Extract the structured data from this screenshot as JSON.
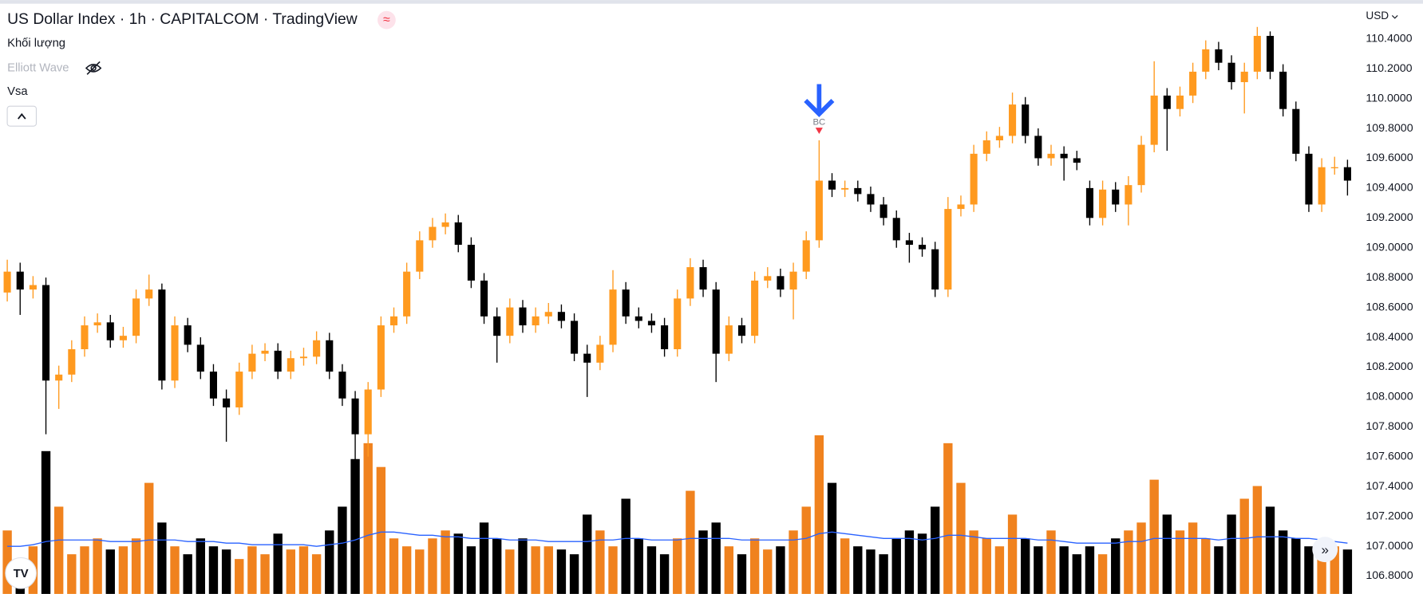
{
  "chart_data": {
    "type": "candlestick",
    "title": "US Dollar Index · 1h · CAPITALCOM · TradingView",
    "indicators": [
      "Khối lượng",
      "Elliott Wave",
      "Vsa"
    ],
    "currency": "USD",
    "up_color": "#ff9a1f",
    "down_color": "#000000",
    "open": [
      108.7,
      108.84,
      108.72,
      108.75,
      108.11,
      108.15,
      108.32,
      108.48,
      108.5,
      108.38,
      108.41,
      108.66,
      108.72,
      108.11,
      108.48,
      108.35,
      108.17,
      107.99,
      107.93,
      108.17,
      108.29,
      108.31,
      108.17,
      108.26,
      108.27,
      108.38,
      108.17,
      107.99,
      107.75,
      108.05,
      108.48,
      108.54,
      108.84,
      109.05,
      109.14,
      109.17,
      109.02,
      108.78,
      108.54,
      108.41,
      108.6,
      108.48,
      108.54,
      108.57,
      108.51,
      108.29,
      108.23,
      108.35,
      108.72,
      108.54,
      108.51,
      108.48,
      108.32,
      108.66,
      108.87,
      108.72,
      108.29,
      108.48,
      108.41,
      108.78,
      108.81,
      108.72,
      108.84,
      109.05,
      109.45,
      109.39,
      109.4,
      109.36,
      109.29,
      109.2,
      109.05,
      109.02,
      108.99,
      108.72,
      109.26,
      109.29,
      109.63,
      109.72,
      109.75,
      109.96,
      109.75,
      109.6,
      109.63,
      109.6,
      109.4,
      109.2,
      109.39,
      109.29,
      109.42,
      109.69,
      110.02,
      109.93,
      110.02,
      110.18,
      110.33,
      110.24,
      110.11,
      110.18,
      110.42,
      110.18,
      109.93,
      109.63,
      109.29,
      109.54,
      109.54
    ],
    "high": [
      108.92,
      108.9,
      108.81,
      108.8,
      108.21,
      108.38,
      108.54,
      108.56,
      108.55,
      108.47,
      108.72,
      108.82,
      108.76,
      108.54,
      108.53,
      108.4,
      108.22,
      108.05,
      108.23,
      108.35,
      108.36,
      108.36,
      108.31,
      108.33,
      108.44,
      108.43,
      108.22,
      108.04,
      108.1,
      108.54,
      108.6,
      108.9,
      109.11,
      109.2,
      109.23,
      109.22,
      109.07,
      108.83,
      108.6,
      108.66,
      108.65,
      108.6,
      108.63,
      108.62,
      108.56,
      108.35,
      108.41,
      108.85,
      108.77,
      108.6,
      108.56,
      108.53,
      108.72,
      108.93,
      108.92,
      108.77,
      108.54,
      108.53,
      108.84,
      108.87,
      108.86,
      108.9,
      109.11,
      109.72,
      109.5,
      109.45,
      109.45,
      109.41,
      109.34,
      109.25,
      109.1,
      109.07,
      109.04,
      109.34,
      109.35,
      109.69,
      109.78,
      109.81,
      110.04,
      110.01,
      109.8,
      109.69,
      109.68,
      109.65,
      109.45,
      109.45,
      109.44,
      109.48,
      109.75,
      110.25,
      110.07,
      110.08,
      110.24,
      110.39,
      110.38,
      110.29,
      110.24,
      110.48,
      110.45,
      110.23,
      109.98,
      109.68,
      109.6,
      109.61,
      109.59
    ],
    "low": [
      108.64,
      108.55,
      108.66,
      107.75,
      107.92,
      108.1,
      108.27,
      108.43,
      108.33,
      108.33,
      108.36,
      108.61,
      108.05,
      108.06,
      108.3,
      108.12,
      107.94,
      107.7,
      107.88,
      108.12,
      108.24,
      108.12,
      108.12,
      108.21,
      108.22,
      108.12,
      107.94,
      107.55,
      107.6,
      108.0,
      108.43,
      108.49,
      108.79,
      109.0,
      109.09,
      108.97,
      108.73,
      108.49,
      108.23,
      108.36,
      108.43,
      108.43,
      108.49,
      108.46,
      108.24,
      108.0,
      108.18,
      108.3,
      108.49,
      108.46,
      108.43,
      108.27,
      108.27,
      108.61,
      108.67,
      108.1,
      108.24,
      108.36,
      108.36,
      108.73,
      108.67,
      108.52,
      108.79,
      109.0,
      109.34,
      109.34,
      109.31,
      109.24,
      109.15,
      109.0,
      108.9,
      108.94,
      108.67,
      108.67,
      109.21,
      109.24,
      109.58,
      109.67,
      109.7,
      109.7,
      109.55,
      109.55,
      109.45,
      109.52,
      109.15,
      109.15,
      109.24,
      109.15,
      109.37,
      109.64,
      109.65,
      109.88,
      109.97,
      110.13,
      110.19,
      110.06,
      109.9,
      110.13,
      110.13,
      109.88,
      109.58,
      109.24,
      109.24,
      109.49,
      109.35
    ],
    "close": [
      108.84,
      108.72,
      108.75,
      108.11,
      108.15,
      108.32,
      108.48,
      108.5,
      108.38,
      108.41,
      108.66,
      108.72,
      108.11,
      108.48,
      108.35,
      108.17,
      107.99,
      107.93,
      108.17,
      108.29,
      108.31,
      108.17,
      108.26,
      108.27,
      108.38,
      108.17,
      107.99,
      107.75,
      108.05,
      108.48,
      108.54,
      108.84,
      109.05,
      109.14,
      109.17,
      109.02,
      108.78,
      108.54,
      108.41,
      108.6,
      108.48,
      108.54,
      108.57,
      108.51,
      108.29,
      108.23,
      108.35,
      108.72,
      108.54,
      108.51,
      108.48,
      108.32,
      108.66,
      108.87,
      108.72,
      108.29,
      108.48,
      108.41,
      108.78,
      108.81,
      108.72,
      108.84,
      109.05,
      109.45,
      109.39,
      109.4,
      109.36,
      109.29,
      109.2,
      109.05,
      109.02,
      108.99,
      108.72,
      109.26,
      109.29,
      109.63,
      109.72,
      109.75,
      109.96,
      109.75,
      109.6,
      109.63,
      109.6,
      109.57,
      109.2,
      109.39,
      109.29,
      109.42,
      109.69,
      110.02,
      109.93,
      110.02,
      110.18,
      110.33,
      110.24,
      110.11,
      110.18,
      110.42,
      110.18,
      109.93,
      109.63,
      109.29,
      109.54,
      109.54,
      109.45
    ],
    "volume": {
      "vlim": [
        0,
        100
      ],
      "up_color": "#f0821e",
      "down_color": "#000000",
      "values": [
        40,
        18,
        30,
        90,
        55,
        25,
        30,
        35,
        28,
        30,
        35,
        70,
        45,
        30,
        25,
        35,
        30,
        28,
        22,
        30,
        25,
        38,
        28,
        30,
        25,
        40,
        55,
        85,
        95,
        80,
        35,
        30,
        28,
        35,
        40,
        38,
        30,
        45,
        35,
        28,
        35,
        30,
        30,
        28,
        25,
        50,
        40,
        30,
        60,
        35,
        30,
        25,
        35,
        65,
        40,
        45,
        30,
        25,
        35,
        28,
        30,
        40,
        55,
        100,
        70,
        35,
        30,
        28,
        25,
        35,
        40,
        38,
        55,
        95,
        70,
        40,
        35,
        30,
        50,
        35,
        30,
        40,
        30,
        25,
        30,
        25,
        35,
        40,
        45,
        72,
        50,
        40,
        45,
        35,
        30,
        50,
        60,
        68,
        55,
        40,
        35,
        30,
        25,
        30,
        28
      ]
    },
    "volume_ma": {
      "color": "#2962ff",
      "values": [
        30,
        30,
        31,
        33,
        34,
        34,
        34,
        34,
        33,
        33,
        33,
        34,
        34,
        34,
        33,
        33,
        33,
        32,
        32,
        31,
        31,
        31,
        31,
        31,
        30,
        31,
        32,
        34,
        37,
        39,
        39,
        38,
        37,
        37,
        36,
        36,
        35,
        35,
        35,
        34,
        34,
        34,
        33,
        33,
        33,
        33,
        34,
        34,
        35,
        35,
        34,
        34,
        34,
        35,
        35,
        35,
        35,
        34,
        34,
        34,
        34,
        34,
        35,
        38,
        39,
        38,
        37,
        36,
        35,
        35,
        35,
        34,
        35,
        37,
        37,
        36,
        35,
        35,
        35,
        35,
        34,
        34,
        33,
        32,
        32,
        32,
        32,
        33,
        33,
        35,
        35,
        35,
        35,
        35,
        34,
        35,
        35,
        36,
        36,
        36,
        35,
        35,
        34,
        33,
        32
      ]
    },
    "signal": {
      "text": "BC",
      "candle": 63,
      "color": "#f23645",
      "arrow_color": "#2962ff"
    },
    "ylim": [
      106.68,
      110.66
    ],
    "yticks": [
      {
        "value": 110.4,
        "label": "110.4000"
      },
      {
        "value": 110.2,
        "label": "110.2000"
      },
      {
        "value": 110.0,
        "label": "110.0000"
      },
      {
        "value": 109.8,
        "label": "109.8000"
      },
      {
        "value": 109.6,
        "label": "109.6000"
      },
      {
        "value": 109.4,
        "label": "109.4000"
      },
      {
        "value": 109.2,
        "label": "109.2000"
      },
      {
        "value": 109.0,
        "label": "109.0000"
      },
      {
        "value": 108.8,
        "label": "108.8000"
      },
      {
        "value": 108.6,
        "label": "108.6000"
      },
      {
        "value": 108.4,
        "label": "108.4000"
      },
      {
        "value": 108.2,
        "label": "108.2000"
      },
      {
        "value": 108.0,
        "label": "108.0000"
      },
      {
        "value": 107.8,
        "label": "107.8000"
      },
      {
        "value": 107.6,
        "label": "107.6000"
      },
      {
        "value": 107.4,
        "label": "107.4000"
      },
      {
        "value": 107.2,
        "label": "107.2000"
      },
      {
        "value": 107.0,
        "label": "107.0000"
      },
      {
        "value": 106.8,
        "label": "106.8000"
      }
    ]
  }
}
